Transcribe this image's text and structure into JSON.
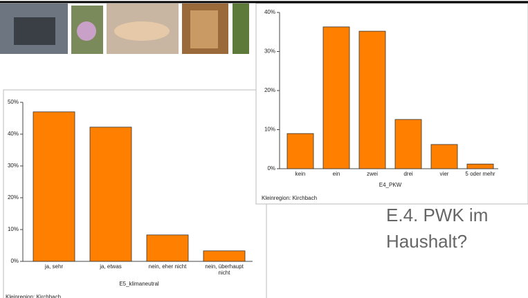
{
  "chart_data": [
    {
      "type": "bar",
      "x_label": "E5_klimaneutral",
      "note": "Kleinregion: Kirchbach",
      "categories": [
        "ja, sehr",
        "ja, etwas",
        "nein, eher nicht",
        "nein, überhaupt nicht"
      ],
      "values": [
        47,
        42.2,
        8.3,
        3.3
      ],
      "color": "#ff8000",
      "ylim": [
        0,
        50
      ],
      "yticks": [
        {
          "value": 0,
          "label": "0%"
        },
        {
          "value": 10,
          "label": "10%"
        },
        {
          "value": 20,
          "label": "20%"
        },
        {
          "value": 30,
          "label": "30%"
        },
        {
          "value": 40,
          "label": "40%"
        },
        {
          "value": 50,
          "label": "50%"
        }
      ]
    },
    {
      "type": "bar",
      "x_label": "E4_PKW",
      "note": "Kleinregion: Kirchbach",
      "categories": [
        "kein",
        "ein",
        "zwei",
        "drei",
        "vier",
        "5 oder mehr"
      ],
      "values": [
        9.0,
        36.3,
        35.2,
        12.6,
        6.2,
        1.2
      ],
      "color": "#ff8000",
      "ylim": [
        0,
        40
      ],
      "yticks": [
        {
          "value": 0,
          "label": "0%"
        },
        {
          "value": 10,
          "label": "10%"
        },
        {
          "value": 20,
          "label": "20%"
        },
        {
          "value": 30,
          "label": "30%"
        },
        {
          "value": 40,
          "label": "40%"
        }
      ]
    }
  ],
  "slide_title": "E.4. PWK im Haushalt?"
}
